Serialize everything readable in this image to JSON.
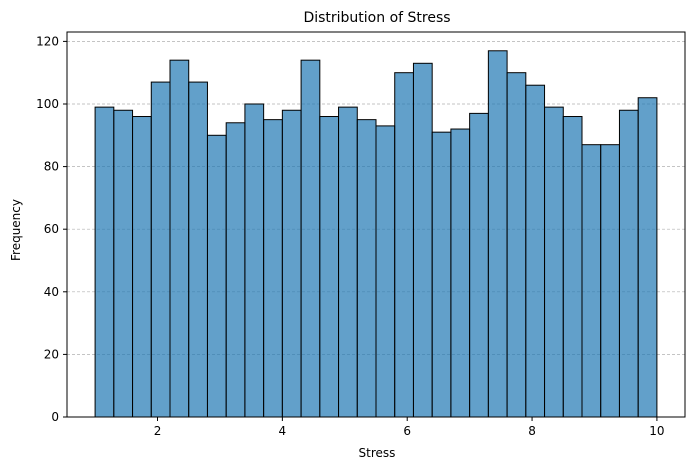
{
  "chart_data": {
    "type": "bar",
    "subtype": "histogram",
    "title": "Distribution of Stress",
    "xlabel": "Stress",
    "ylabel": "Frequency",
    "bin_start": 1,
    "bin_end": 10,
    "bins": 30,
    "values": [
      99,
      98,
      96,
      107,
      114,
      107,
      90,
      94,
      100,
      95,
      98,
      114,
      96,
      99,
      95,
      93,
      110,
      113,
      91,
      92,
      97,
      117,
      110,
      106,
      99,
      96,
      87,
      87,
      98,
      102
    ],
    "xlim": [
      0.55,
      10.45
    ],
    "ylim": [
      0,
      123
    ],
    "xticks": [
      2,
      4,
      6,
      8,
      10
    ],
    "yticks": [
      0,
      20,
      40,
      60,
      80,
      100,
      120
    ],
    "grid": "y-dashed",
    "colors": {
      "bar_fill": "#1f77b4",
      "bar_edge": "#000000",
      "grid": "#b0b0b0"
    }
  }
}
